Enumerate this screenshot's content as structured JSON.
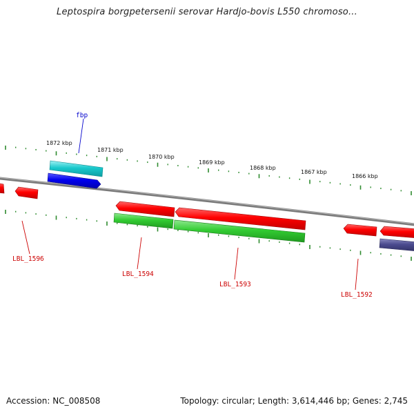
{
  "title": "Leptospira borgpetersenii serovar Hardjo-bovis L550 chromoso...",
  "footer": {
    "accession": "Accession: NC_008508",
    "summary": "Topology: circular; Length: 3,614,446 bp; Genes: 2,745"
  },
  "ticks": [
    "1872 kbp",
    "1871 kbp",
    "1870 kbp",
    "1869 kbp",
    "1868 kbp",
    "1867 kbp",
    "1866 kbp"
  ],
  "genes": {
    "fbp": "fbp",
    "lbl1596": "LBL_1596",
    "lbl1594": "LBL_1594",
    "lbl1593": "LBL_1593",
    "lbl1592": "LBL_1592"
  },
  "colors": {
    "backbone": "#7a7a7a",
    "tick": "#2e8b2e",
    "cds_forward": "#ff0000",
    "cds_reverse_green": "#33cc33",
    "trna": "#19c8cc",
    "fbp_gene": "#0000ee",
    "misc_feature": "#4b4b8f",
    "label_red": "#cc0000",
    "label_blue": "#0000cc"
  }
}
